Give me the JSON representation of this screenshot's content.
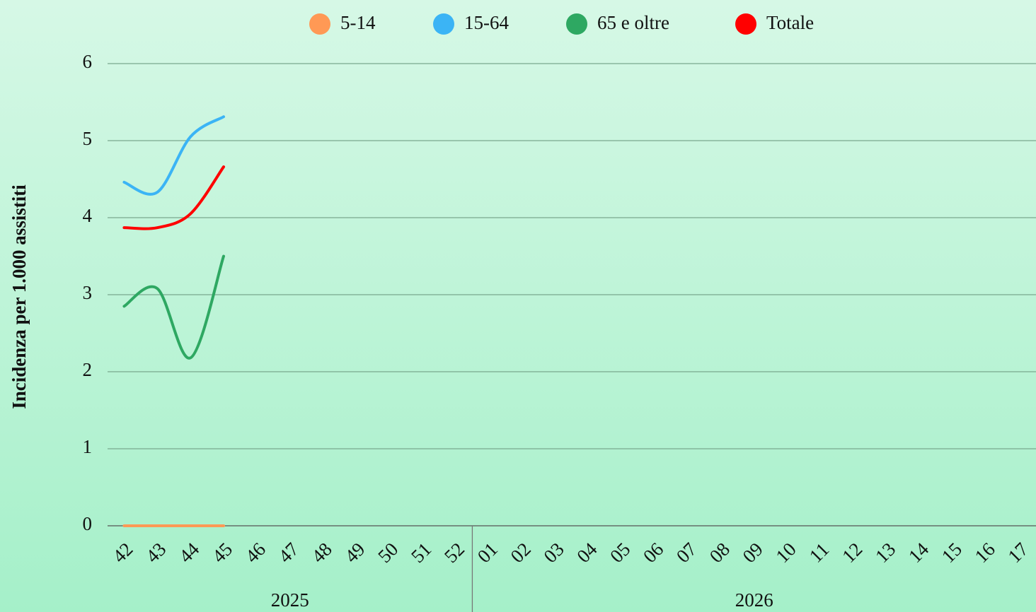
{
  "chart_data": {
    "type": "line",
    "y_label": "Incidenza per 1.000 assistiti",
    "categories": [
      "42",
      "43",
      "44",
      "45",
      "46",
      "47",
      "48",
      "49",
      "50",
      "51",
      "52",
      "01",
      "02",
      "03",
      "04",
      "05",
      "06",
      "07",
      "08",
      "09",
      "10",
      "11",
      "12",
      "13",
      "14",
      "15",
      "16",
      "17"
    ],
    "x_groups": [
      {
        "label": "2025",
        "count": 11
      },
      {
        "label": "2026",
        "count": 17
      }
    ],
    "series": [
      {
        "name": "5-14",
        "color": "#ff9955",
        "values": [
          0,
          0,
          0,
          0,
          null,
          null,
          null,
          null,
          null,
          null,
          null,
          null,
          null,
          null,
          null,
          null,
          null,
          null,
          null,
          null,
          null,
          null,
          null,
          null,
          null,
          null,
          null,
          null
        ]
      },
      {
        "name": "15-64",
        "color": "#3bb4f5",
        "values": [
          4.46,
          4.33,
          5.05,
          5.31,
          null,
          null,
          null,
          null,
          null,
          null,
          null,
          null,
          null,
          null,
          null,
          null,
          null,
          null,
          null,
          null,
          null,
          null,
          null,
          null,
          null,
          null,
          null,
          null
        ]
      },
      {
        "name": "65 e oltre",
        "color": "#2ea862",
        "values": [
          2.85,
          3.08,
          2.18,
          3.5,
          null,
          null,
          null,
          null,
          null,
          null,
          null,
          null,
          null,
          null,
          null,
          null,
          null,
          null,
          null,
          null,
          null,
          null,
          null,
          null,
          null,
          null,
          null,
          null
        ]
      },
      {
        "name": "Totale",
        "color": "#ff0000",
        "values": [
          3.87,
          3.87,
          4.05,
          4.66,
          null,
          null,
          null,
          null,
          null,
          null,
          null,
          null,
          null,
          null,
          null,
          null,
          null,
          null,
          null,
          null,
          null,
          null,
          null,
          null,
          null,
          null,
          null,
          null
        ]
      }
    ],
    "ylim": [
      0,
      6
    ],
    "yticks": [
      0,
      1,
      2,
      3,
      4,
      5,
      6
    ],
    "grid": true,
    "legend": "top"
  }
}
